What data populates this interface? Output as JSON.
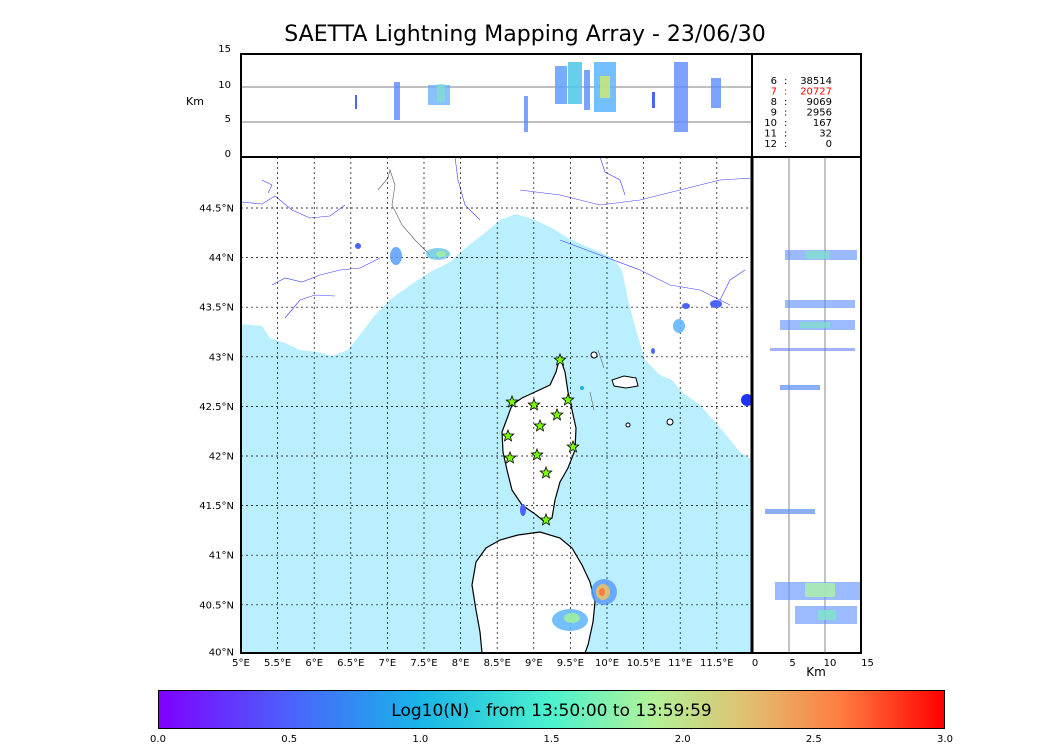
{
  "title": "SAETTA Lightning Mapping Array - 23/06/30",
  "top_panel": {
    "ylabel": "Km",
    "yticks": [
      "15",
      "10",
      "5",
      "0"
    ],
    "station_counts": [
      {
        "n": "6",
        "sep": ":",
        "count": "38514",
        "color": "#000000"
      },
      {
        "n": "7",
        "sep": ":",
        "count": "20727",
        "color": "#ff0000"
      },
      {
        "n": "8",
        "sep": ":",
        "count": "9069",
        "color": "#000000"
      },
      {
        "n": "9",
        "sep": ":",
        "count": "2956",
        "color": "#000000"
      },
      {
        "n": "10",
        "sep": ":",
        "count": "167",
        "color": "#000000"
      },
      {
        "n": "11",
        "sep": ":",
        "count": "32",
        "color": "#000000"
      },
      {
        "n": "12",
        "sep": ":",
        "count": "0",
        "color": "#000000"
      }
    ]
  },
  "map_panel": {
    "lat_labels": [
      "44.5°N",
      "44°N",
      "43.5°N",
      "43°N",
      "42.5°N",
      "42°N",
      "41.5°N",
      "41°N",
      "40.5°N",
      "40°N"
    ],
    "lon_labels": [
      "5°E",
      "5.5°E",
      "6°E",
      "6.5°E",
      "7°E",
      "7.5°E",
      "8°E",
      "8.5°E",
      "9°E",
      "9.5°E",
      "10°E",
      "10.5°E",
      "11°E",
      "11.5°E"
    ],
    "sea_color": "#b9efff",
    "station_color": "#7cfc00"
  },
  "side_panel": {
    "xticks": [
      "0",
      "5",
      "10",
      "15"
    ],
    "xlabel": "Km"
  },
  "colorbar": {
    "label": "Log10(N) - from 13:50:00 to 13:59:59",
    "ticks": [
      "0.0",
      "0.5",
      "1.0",
      "1.5",
      "2.0",
      "2.5",
      "3.0"
    ]
  }
}
